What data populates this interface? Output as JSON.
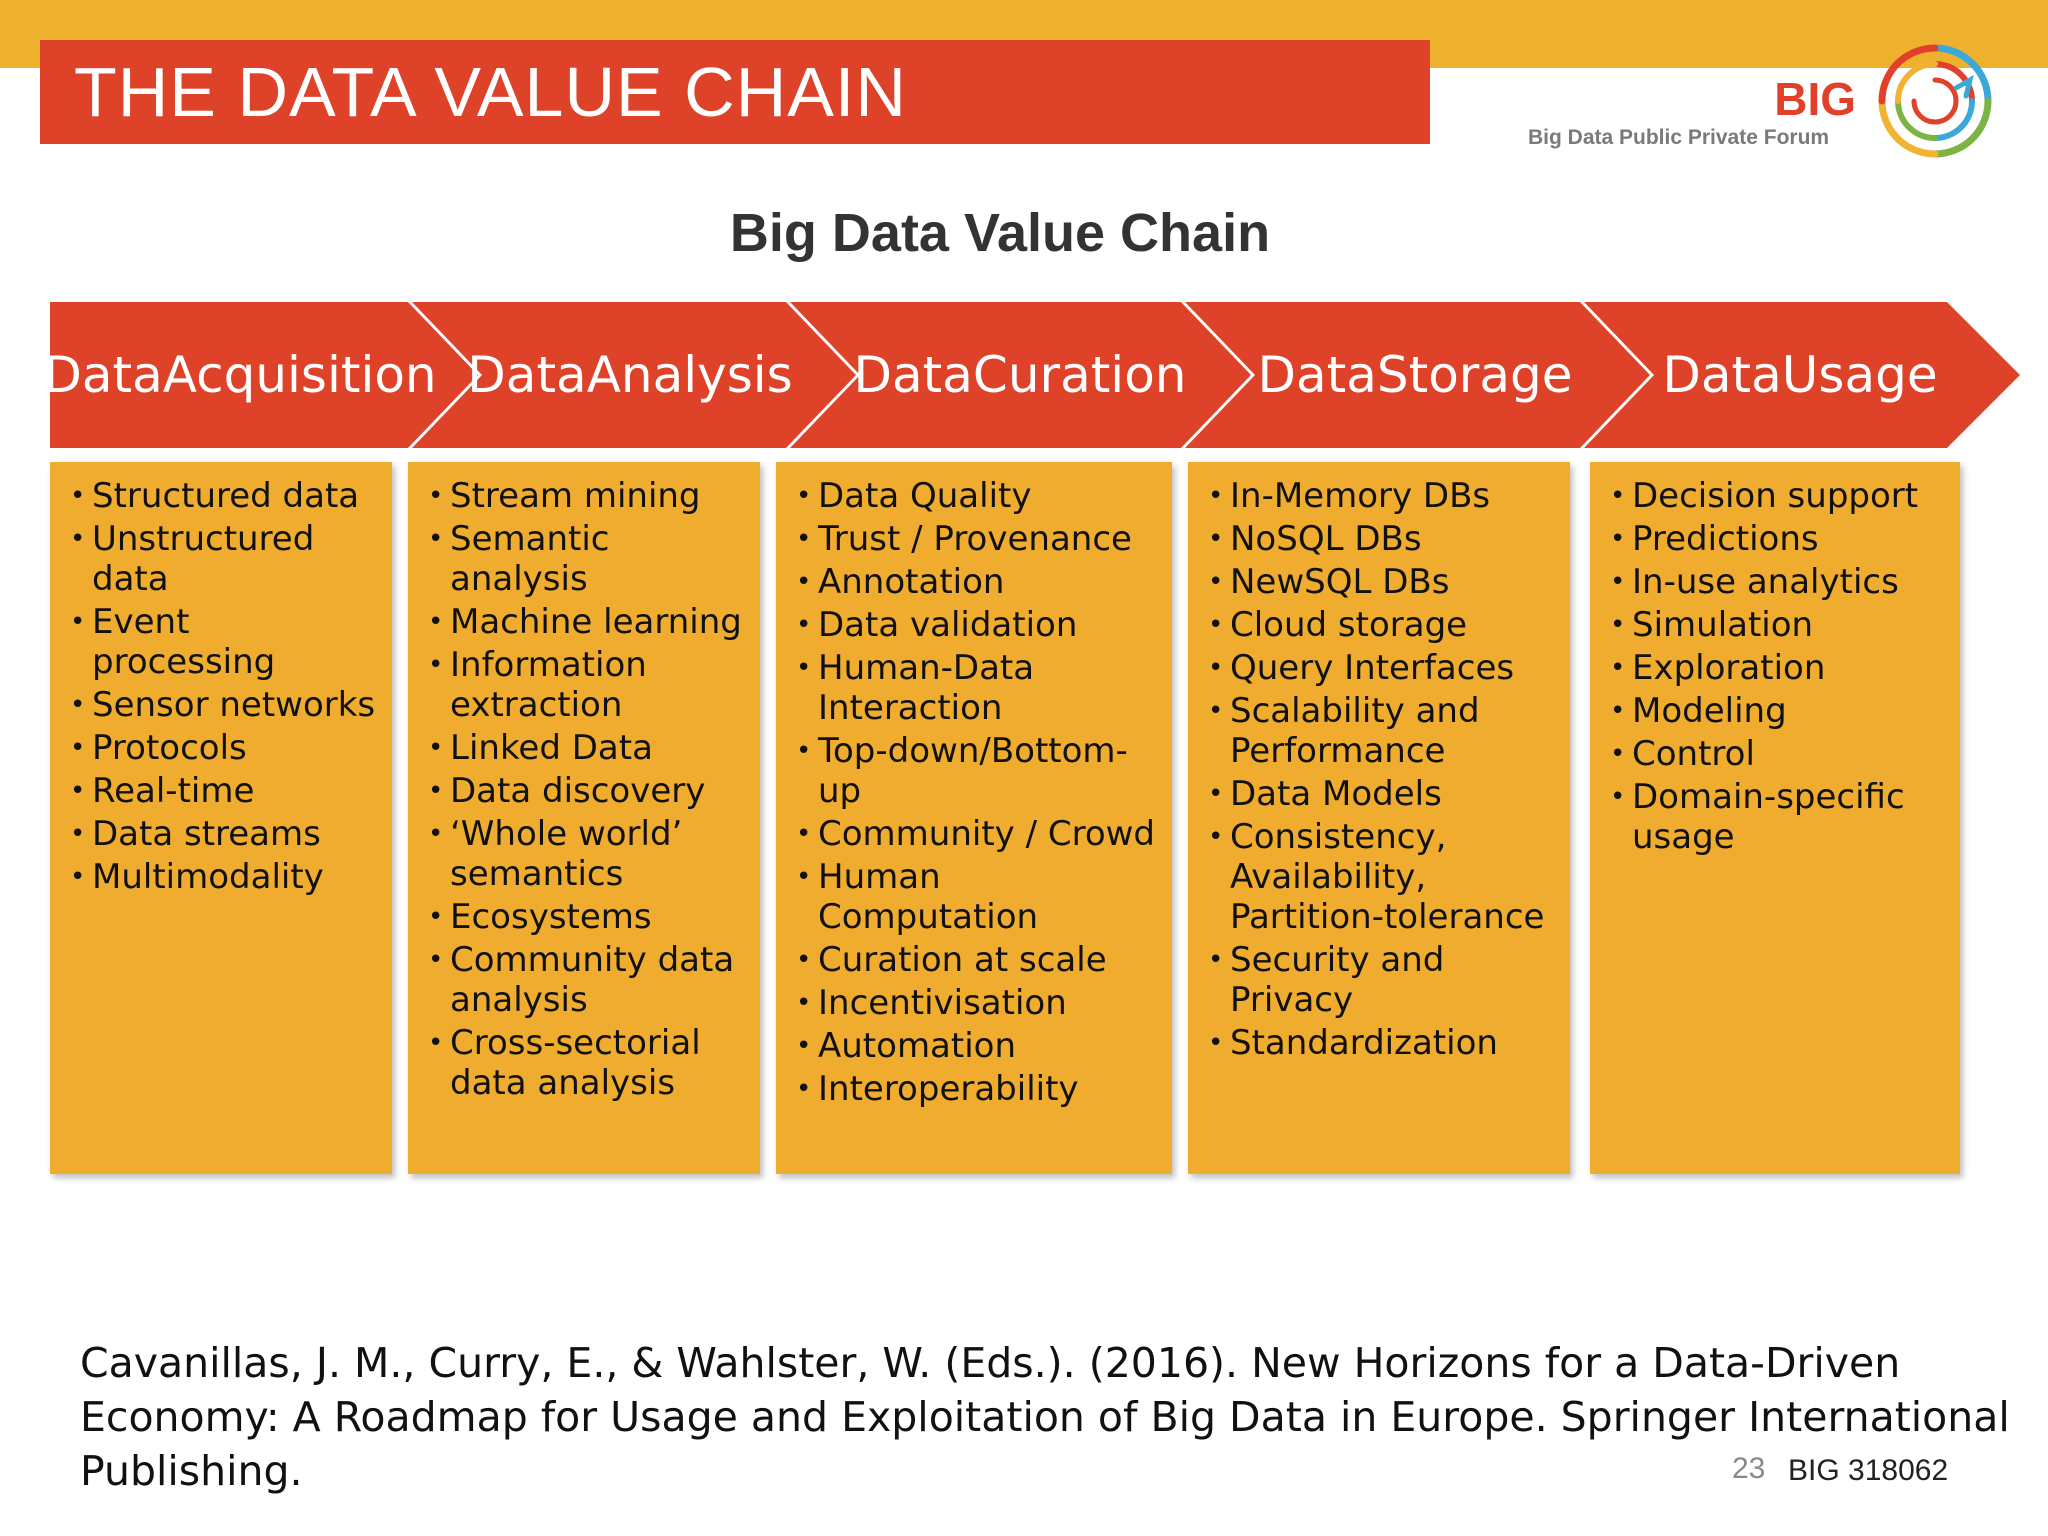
{
  "header": {
    "title": "THE DATA VALUE CHAIN",
    "logo_text": "BIG",
    "logo_subtitle": "Big Data Public Private Forum"
  },
  "chain": {
    "title": "Big Data Value Chain",
    "stages": [
      {
        "line1": "Data",
        "line2": "Acquisition",
        "items": [
          "Structured data",
          "Unstructured data",
          "Event processing",
          "Sensor networks",
          "Protocols",
          "Real-time",
          "Data streams",
          "Multimodality"
        ]
      },
      {
        "line1": "Data",
        "line2": "Analysis",
        "items": [
          "Stream mining",
          "Semantic analysis",
          "Machine learning",
          "Information extraction",
          "Linked Data",
          "Data discovery",
          "‘Whole world’ semantics",
          "Ecosystems",
          "Community data analysis",
          "Cross-sectorial data analysis"
        ]
      },
      {
        "line1": "Data",
        "line2": "Curation",
        "items": [
          "Data Quality",
          "Trust / Provenance",
          "Annotation",
          "Data validation",
          "Human-Data Interaction",
          "Top-down/Bottom-up",
          "Community / Crowd",
          "Human Computation",
          "Curation at scale",
          "Incentivisation",
          "Automation",
          "Interoperability"
        ]
      },
      {
        "line1": "Data",
        "line2": "Storage",
        "items": [
          "In-Memory DBs",
          "NoSQL DBs",
          "NewSQL DBs",
          "Cloud storage",
          "Query Interfaces",
          "Scalability and Performance",
          "Data Models",
          "Consistency, Availability, Partition-tolerance",
          "Security and Privacy",
          "Standardization"
        ]
      },
      {
        "line1": "Data",
        "line2": "Usage",
        "items": [
          "Decision support",
          "Predictions",
          "In-use analytics",
          "Simulation",
          "Exploration",
          "Modeling",
          "Control",
          "Domain-specific usage"
        ]
      }
    ]
  },
  "footer": {
    "citation": "Cavanillas, J. M., Curry, E., & Wahlster, W. (Eds.). (2016). New Horizons for a Data-Driven Economy: A Roadmap for Usage and Exploitation of Big Data in Europe. Springer International Publishing.",
    "page_number": "23",
    "project_id": "BIG 318062"
  },
  "colors": {
    "accent_red": "#DE432A",
    "accent_orange": "#EFAC2F",
    "band_gold": "#EDB12D"
  }
}
